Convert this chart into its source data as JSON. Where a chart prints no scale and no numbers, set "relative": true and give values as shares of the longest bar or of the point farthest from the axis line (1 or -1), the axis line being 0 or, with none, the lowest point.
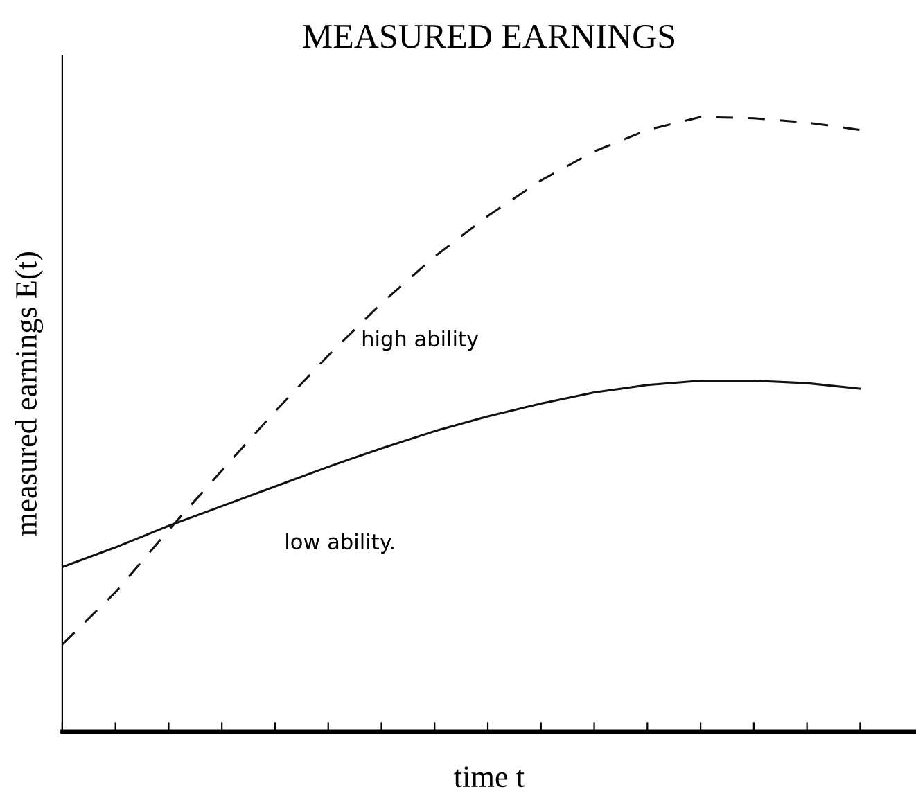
{
  "chart_data": {
    "type": "line",
    "title": "MEASURED EARNINGS",
    "xlabel": "time t",
    "ylabel": "measured earnings E(t)",
    "relative": true,
    "categories": [
      null,
      null,
      null,
      null,
      null,
      null,
      null,
      null,
      null,
      null,
      null,
      null,
      null,
      null,
      null,
      null
    ],
    "series": [
      {
        "color": "#111111",
        "line_style": "solid",
        "values": [
          0.268,
          0.3,
          0.335,
          0.367,
          0.399,
          0.431,
          0.461,
          0.489,
          0.513,
          0.534,
          0.552,
          0.564,
          0.571,
          0.571,
          0.567,
          0.558
        ]
      },
      {
        "color": "#111111",
        "line_style": "dashed",
        "values": [
          0.142,
          0.227,
          0.328,
          0.425,
          0.521,
          0.612,
          0.697,
          0.773,
          0.839,
          0.897,
          0.944,
          0.979,
          1.0,
          0.998,
          0.991,
          0.979
        ]
      }
    ],
    "annotations": [
      "high ability",
      "low ability."
    ],
    "grid": false,
    "legend": false
  }
}
